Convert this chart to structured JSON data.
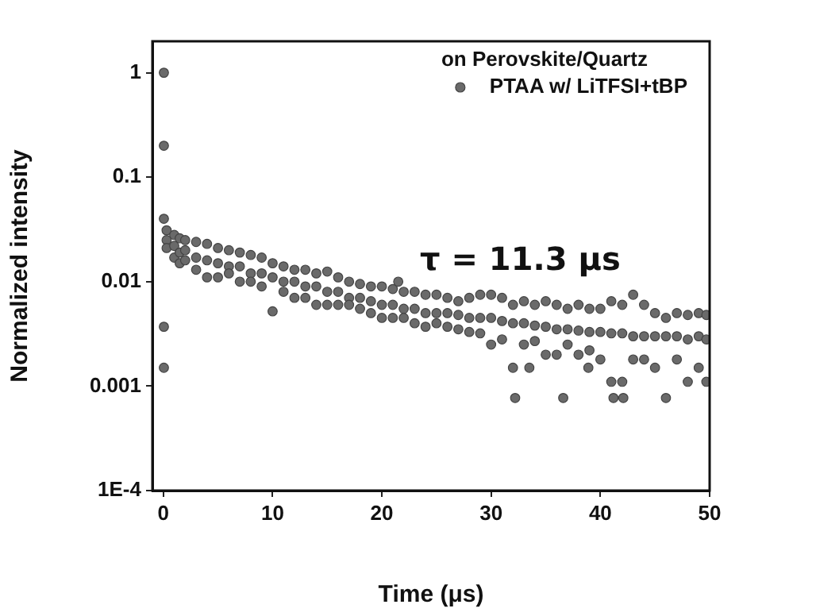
{
  "chart_data": {
    "type": "scatter",
    "xlabel": "Time (μs)",
    "ylabel": "Normalized intensity",
    "legend_title": "on Perovskite/Quartz",
    "legend": "top right",
    "log": "y",
    "marker": "circle",
    "grid": false,
    "xlim": [
      -1,
      50
    ],
    "xticks": [
      0,
      10,
      20,
      30,
      40,
      50
    ],
    "ylim": [
      0.0001,
      2
    ],
    "yticks": [
      1,
      0.1,
      0.01,
      0.001,
      {
        "value": 0.0001,
        "label": "1E-4"
      }
    ],
    "annotations": [
      "τ = 11.3 μs"
    ],
    "series": [
      {
        "name": "PTAA w/ LiTFSI+tBP",
        "color": "#6a6a6a",
        "x": [
          0.05,
          0.05,
          0.05,
          0.05,
          0.05,
          0.3,
          0.3,
          0.3,
          1,
          1,
          1,
          1.5,
          1.5,
          1.5,
          2,
          2,
          2,
          3,
          3,
          3,
          4,
          4,
          4,
          5,
          5,
          5,
          6,
          6,
          6,
          7,
          7,
          7,
          8,
          8,
          8,
          9,
          9,
          9,
          10,
          10,
          10,
          11,
          11,
          11,
          12,
          12,
          12,
          13,
          13,
          13,
          14,
          14,
          14,
          15,
          15,
          15,
          16,
          16,
          16,
          17,
          17,
          17,
          18,
          18,
          18,
          19,
          19,
          19,
          20,
          20,
          20,
          21,
          21,
          21,
          21.5,
          22,
          22,
          22,
          23,
          23,
          23,
          24,
          24,
          24,
          25,
          25,
          25,
          26,
          26,
          26,
          27,
          27,
          27,
          28,
          28,
          28,
          29,
          29,
          29,
          30,
          30,
          30,
          31,
          31,
          31,
          32,
          32,
          32,
          32.2,
          33,
          33,
          33,
          33.5,
          34,
          34,
          34,
          35,
          35,
          35,
          36,
          36,
          36,
          36.6,
          37,
          37,
          37,
          38,
          38,
          38,
          38.9,
          39,
          39,
          39,
          40,
          40,
          40,
          41,
          41,
          41,
          41.2,
          42,
          42,
          42,
          42.1,
          43,
          43,
          43,
          44,
          44,
          44,
          45,
          45,
          45,
          46,
          46,
          46,
          47,
          47,
          47,
          48,
          48,
          48,
          49,
          49,
          49,
          49.7,
          49.7,
          49.7
        ],
        "values": [
          1,
          0.2,
          0.04,
          0.0037,
          0.0015,
          0.031,
          0.025,
          0.021,
          0.028,
          0.022,
          0.017,
          0.026,
          0.019,
          0.015,
          0.025,
          0.02,
          0.016,
          0.024,
          0.017,
          0.013,
          0.023,
          0.016,
          0.011,
          0.021,
          0.015,
          0.011,
          0.02,
          0.014,
          0.012,
          0.019,
          0.014,
          0.01,
          0.018,
          0.012,
          0.01,
          0.017,
          0.012,
          0.009,
          0.015,
          0.011,
          0.0052,
          0.014,
          0.01,
          0.008,
          0.013,
          0.01,
          0.007,
          0.013,
          0.009,
          0.007,
          0.012,
          0.009,
          0.006,
          0.0125,
          0.008,
          0.006,
          0.011,
          0.008,
          0.006,
          0.01,
          0.007,
          0.006,
          0.0095,
          0.007,
          0.0055,
          0.009,
          0.0065,
          0.005,
          0.009,
          0.006,
          0.0045,
          0.0085,
          0.006,
          0.0045,
          0.01,
          0.008,
          0.0055,
          0.0045,
          0.008,
          0.0055,
          0.004,
          0.0075,
          0.005,
          0.0037,
          0.0075,
          0.005,
          0.004,
          0.007,
          0.005,
          0.0037,
          0.0065,
          0.0048,
          0.0035,
          0.007,
          0.0045,
          0.0033,
          0.0075,
          0.0045,
          0.0032,
          0.0075,
          0.0045,
          0.0025,
          0.007,
          0.0042,
          0.0028,
          0.006,
          0.004,
          0.0015,
          0.00077,
          0.0065,
          0.004,
          0.0025,
          0.0015,
          0.006,
          0.0038,
          0.0027,
          0.0065,
          0.0037,
          0.002,
          0.006,
          0.0035,
          0.002,
          0.00077,
          0.0055,
          0.0035,
          0.0025,
          0.006,
          0.0034,
          0.002,
          0.0015,
          0.0055,
          0.0033,
          0.0022,
          0.0055,
          0.0033,
          0.0018,
          0.0065,
          0.0032,
          0.0011,
          0.00077,
          0.006,
          0.0032,
          0.0011,
          0.00077,
          0.0075,
          0.003,
          0.0018,
          0.006,
          0.003,
          0.0018,
          0.005,
          0.003,
          0.0015,
          0.0045,
          0.003,
          0.00077,
          0.005,
          0.003,
          0.0018,
          0.0048,
          0.0028,
          0.0011,
          0.005,
          0.003,
          0.0015,
          0.0048,
          0.0028,
          0.0011
        ]
      }
    ]
  }
}
